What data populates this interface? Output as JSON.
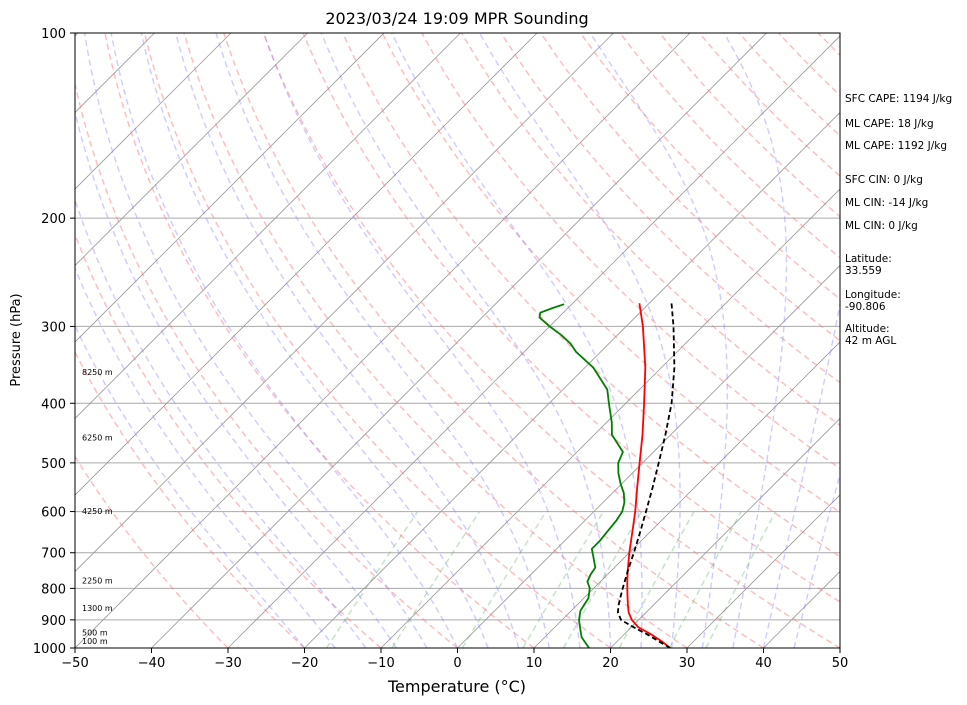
{
  "chart_data": {
    "type": "line",
    "title": "2023/03/24 19:09 MPR Sounding",
    "xlabel": "Temperature (°C)",
    "ylabel": "Pressure (hPa)",
    "xlim": [
      -50,
      50
    ],
    "ylim": [
      1000,
      100
    ],
    "y_scale": "log",
    "x_ticks": [
      -50,
      -40,
      -30,
      -20,
      -10,
      0,
      10,
      20,
      30,
      40,
      50
    ],
    "x_tick_labels": [
      "−50",
      "−40",
      "−30",
      "−20",
      "−10",
      "0",
      "10",
      "20",
      "30",
      "40",
      "50"
    ],
    "y_ticks": [
      100,
      200,
      300,
      400,
      500,
      600,
      700,
      800,
      900,
      1000
    ],
    "y_tick_labels": [
      "100",
      "200",
      "300",
      "400",
      "500",
      "600",
      "700",
      "800",
      "900",
      "1000"
    ],
    "grid": true,
    "series": [
      {
        "color": "#ff0000",
        "points": [
          [
            1000,
            27.8
          ],
          [
            975,
            25.8
          ],
          [
            950,
            23.5
          ],
          [
            925,
            20.9
          ],
          [
            900,
            19.1
          ],
          [
            875,
            17.7
          ],
          [
            850,
            16.6
          ],
          [
            825,
            15.5
          ],
          [
            800,
            14.4
          ],
          [
            775,
            13.3
          ],
          [
            750,
            12.2
          ],
          [
            700,
            10.0
          ],
          [
            650,
            7.8
          ],
          [
            600,
            5.4
          ],
          [
            550,
            2.6
          ],
          [
            500,
            -0.4
          ],
          [
            450,
            -3.7
          ],
          [
            400,
            -7.6
          ],
          [
            350,
            -12.1
          ],
          [
            300,
            -17.8
          ],
          [
            275,
            -21.3
          ]
        ]
      },
      {
        "color": "#008000",
        "points": [
          [
            1000,
            17.2
          ],
          [
            980,
            16.0
          ],
          [
            960,
            14.8
          ],
          [
            930,
            13.5
          ],
          [
            900,
            12.2
          ],
          [
            870,
            11.2
          ],
          [
            850,
            10.9
          ],
          [
            830,
            10.6
          ],
          [
            800,
            9.5
          ],
          [
            780,
            8.3
          ],
          [
            760,
            7.8
          ],
          [
            740,
            7.5
          ],
          [
            710,
            5.8
          ],
          [
            690,
            4.6
          ],
          [
            670,
            4.6
          ],
          [
            650,
            4.4
          ],
          [
            620,
            4.1
          ],
          [
            600,
            3.7
          ],
          [
            580,
            2.8
          ],
          [
            560,
            1.5
          ],
          [
            540,
            -0.2
          ],
          [
            520,
            -1.8
          ],
          [
            500,
            -3.2
          ],
          [
            480,
            -4.0
          ],
          [
            450,
            -7.7
          ],
          [
            430,
            -9.3
          ],
          [
            400,
            -12.2
          ],
          [
            380,
            -14.2
          ],
          [
            350,
            -18.9
          ],
          [
            330,
            -23.2
          ],
          [
            320,
            -25.0
          ],
          [
            310,
            -27.3
          ],
          [
            300,
            -30.0
          ],
          [
            290,
            -32.5
          ],
          [
            285,
            -33.0
          ],
          [
            280,
            -32.0
          ],
          [
            276,
            -31.0
          ]
        ]
      },
      {
        "color": "#000000",
        "dashed": true,
        "points": [
          [
            1000,
            27.8
          ],
          [
            975,
            25.4
          ],
          [
            950,
            23.0
          ],
          [
            925,
            20.3
          ],
          [
            900,
            17.7
          ],
          [
            875,
            16.3
          ],
          [
            850,
            15.4
          ],
          [
            825,
            14.6
          ],
          [
            800,
            13.8
          ],
          [
            750,
            12.2
          ],
          [
            700,
            10.6
          ],
          [
            650,
            8.8
          ],
          [
            600,
            6.8
          ],
          [
            550,
            4.6
          ],
          [
            500,
            2.1
          ],
          [
            450,
            -0.7
          ],
          [
            400,
            -4.0
          ],
          [
            350,
            -8.3
          ],
          [
            300,
            -13.8
          ],
          [
            275,
            -17.1
          ]
        ]
      }
    ],
    "height_labels": [
      "8250 m",
      "6250 m",
      "4250 m",
      "2250 m",
      "1300 m",
      "500 m",
      "100 m"
    ]
  },
  "info": {
    "sfc_cape": "SFC CAPE: 1194 J/kg",
    "ml_cape_1": "ML CAPE: 18 J/kg",
    "ml_cape_2": "ML CAPE: 1192 J/kg",
    "sfc_cin": "SFC CIN: 0 J/kg",
    "ml_cin_1": "ML CIN: -14 J/kg",
    "ml_cin_2": "ML CIN: 0 J/kg",
    "latitude_label": "Latitude:",
    "latitude_value": "33.559",
    "longitude_label": "Longitude:",
    "longitude_value": "-90.806",
    "altitude_label": "Altitude:",
    "altitude_value": "42 m AGL"
  },
  "colors": {
    "temperature": "#ff0000",
    "dewpoint": "#008000",
    "parcel": "#000000",
    "dry_adiabat": "#ff7777",
    "moist_adiabat": "#8080ff",
    "mixing_ratio": "#4caf50",
    "isotherm": "#999999"
  }
}
